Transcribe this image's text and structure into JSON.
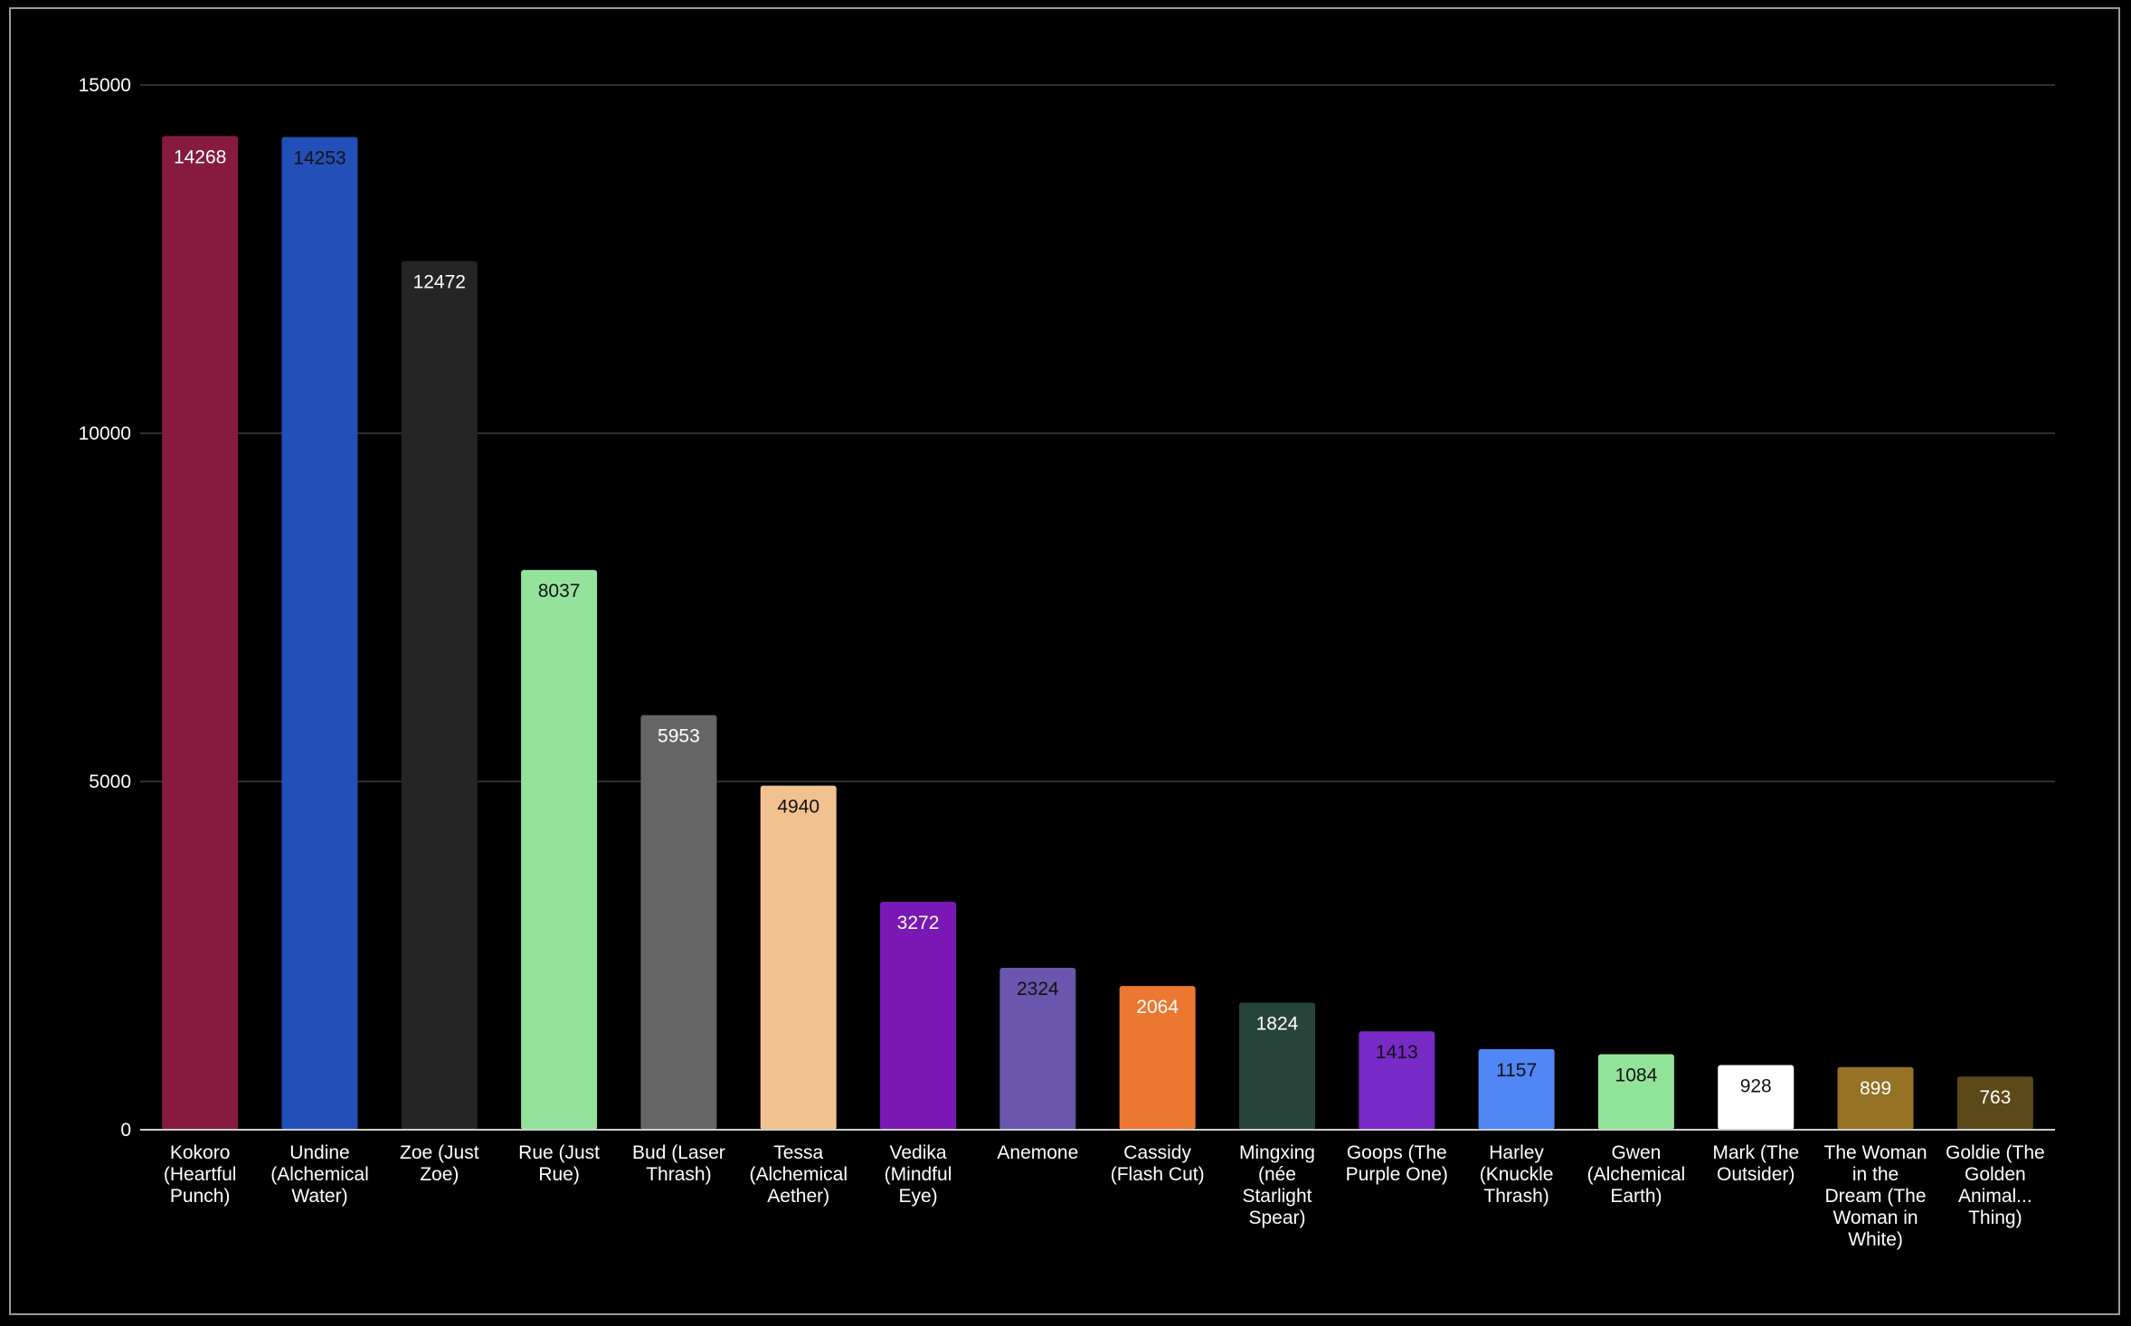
{
  "chart_data": {
    "type": "bar",
    "title": "",
    "xlabel": "",
    "ylabel": "",
    "ylim": [
      0,
      15000
    ],
    "yticks": [
      "0",
      "5000",
      "10000",
      "15000"
    ],
    "grid": true,
    "legend": "none",
    "background": "#000000",
    "bars": [
      {
        "label": [
          "Kokoro",
          "(Heartful",
          "Punch)"
        ],
        "value": 14268,
        "color": "#861a3f",
        "label_color": "#ffffff"
      },
      {
        "label": [
          "Undine",
          "(Alchemical",
          "Water)"
        ],
        "value": 14253,
        "color": "#2350b8",
        "label_color": "#111111"
      },
      {
        "label": [
          "Zoe (Just",
          "Zoe)"
        ],
        "value": 12472,
        "color": "#252525",
        "label_color": "#ffffff"
      },
      {
        "label": [
          "Rue (Just",
          "Rue)"
        ],
        "value": 8037,
        "color": "#93e39d",
        "label_color": "#111111"
      },
      {
        "label": [
          "Bud (Laser",
          "Thrash)"
        ],
        "value": 5953,
        "color": "#666666",
        "label_color": "#ffffff"
      },
      {
        "label": [
          "Tessa",
          "(Alchemical",
          "Aether)"
        ],
        "value": 4940,
        "color": "#f1c28f",
        "label_color": "#111111"
      },
      {
        "label": [
          "Vedika",
          "(Mindful",
          "Eye)"
        ],
        "value": 3272,
        "color": "#7a18b6",
        "label_color": "#ffffff"
      },
      {
        "label": [
          "Anemone"
        ],
        "value": 2324,
        "color": "#6a56ac",
        "label_color": "#111111"
      },
      {
        "label": [
          "Cassidy",
          "(Flash Cut)"
        ],
        "value": 2064,
        "color": "#ec7731",
        "label_color": "#ffffff"
      },
      {
        "label": [
          "Mingxing",
          "(née",
          "Starlight",
          "Spear)"
        ],
        "value": 1824,
        "color": "#27443a",
        "label_color": "#ffffff"
      },
      {
        "label": [
          "Goops (The",
          "Purple One)"
        ],
        "value": 1413,
        "color": "#782ac6",
        "label_color": "#111111"
      },
      {
        "label": [
          "Harley",
          "(Knuckle",
          "Thrash)"
        ],
        "value": 1157,
        "color": "#5187f4",
        "label_color": "#111111"
      },
      {
        "label": [
          "Gwen",
          "(Alchemical",
          "Earth)"
        ],
        "value": 1084,
        "color": "#92e39a",
        "label_color": "#111111"
      },
      {
        "label": [
          "Mark (The",
          "Outsider)"
        ],
        "value": 928,
        "color": "#ffffff",
        "label_color": "#111111"
      },
      {
        "label": [
          "The Woman",
          "in the",
          "Dream (The",
          "Woman in",
          "White)"
        ],
        "value": 899,
        "color": "#957224",
        "label_color": "#ffffff"
      },
      {
        "label": [
          "Goldie (The",
          "Golden",
          "Animal...",
          "Thing)"
        ],
        "value": 763,
        "color": "#5d4819",
        "label_color": "#ffffff"
      }
    ]
  }
}
